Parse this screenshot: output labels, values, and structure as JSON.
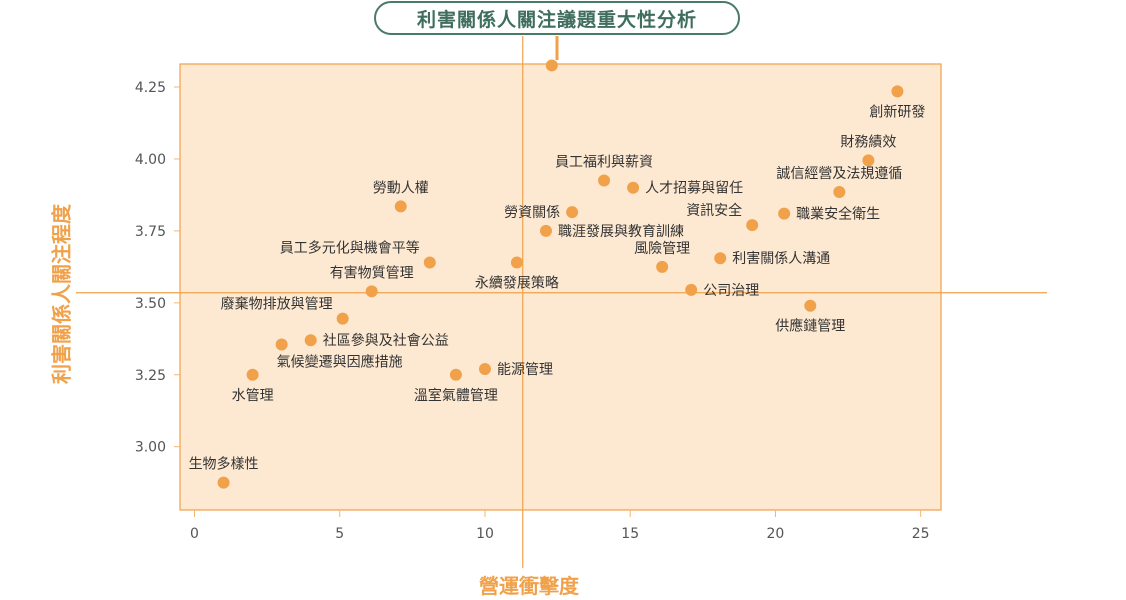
{
  "chart_data": {
    "type": "scatter",
    "title": "利害關係人關注議題重大性分析",
    "xlabel": "營運衝擊度",
    "ylabel": "利害關係人關注程度",
    "xlim": [
      -0.5,
      25.7
    ],
    "ylim": [
      2.78,
      4.33
    ],
    "xticks": [
      0,
      5,
      10,
      15,
      20,
      25
    ],
    "yticks": [
      3.0,
      3.25,
      3.5,
      3.75,
      4.0,
      4.25
    ],
    "ytick_labels": [
      "3.00",
      "3.25",
      "3.50",
      "3.75",
      "4.00",
      "4.25"
    ],
    "divider": {
      "x": 11.3,
      "y": 3.535
    },
    "grid": false,
    "colors": {
      "point": "#f0a14a",
      "plot_bg": "#fde9d2",
      "border": "#f0a14a",
      "title_border": "#4a7a68",
      "title_text": "#3f6e5e",
      "axis_label": "#f0a14a"
    },
    "points": [
      {
        "label": "創新研發",
        "x": 24.2,
        "y": 4.235,
        "label_pos": "below"
      },
      {
        "label": "財務績效",
        "x": 23.2,
        "y": 3.995,
        "label_pos": "above"
      },
      {
        "label": "誠信經營及法規遵循",
        "x": 22.2,
        "y": 3.885,
        "label_pos": "above"
      },
      {
        "label": "職業安全衛生",
        "x": 20.3,
        "y": 3.81,
        "label_pos": "right"
      },
      {
        "label": "資訊安全",
        "x": 19.2,
        "y": 3.77,
        "label_pos": "above-left"
      },
      {
        "label": "利害關係人溝通",
        "x": 18.1,
        "y": 3.655,
        "label_pos": "right"
      },
      {
        "label": "風險管理",
        "x": 16.1,
        "y": 3.625,
        "label_pos": "above"
      },
      {
        "label": "公司治理",
        "x": 17.1,
        "y": 3.545,
        "label_pos": "right"
      },
      {
        "label": "供應鏈管理",
        "x": 21.2,
        "y": 3.49,
        "label_pos": "below"
      },
      {
        "label": "員工福利與薪資",
        "x": 14.1,
        "y": 3.925,
        "label_pos": "above"
      },
      {
        "label": "人才招募與留任",
        "x": 15.1,
        "y": 3.9,
        "label_pos": "right"
      },
      {
        "label": "勞資關係",
        "x": 13.0,
        "y": 3.815,
        "label_pos": "left"
      },
      {
        "label": "職涯發展與教育訓練",
        "x": 12.1,
        "y": 3.75,
        "label_pos": "right"
      },
      {
        "label": "永續發展策略",
        "x": 11.1,
        "y": 3.64,
        "label_pos": "below"
      },
      {
        "label": "勞動人權",
        "x": 7.1,
        "y": 3.835,
        "label_pos": "above"
      },
      {
        "label": "員工多元化與機會平等",
        "x": 8.1,
        "y": 3.64,
        "label_pos": "above-left"
      },
      {
        "label": "有害物質管理",
        "x": 6.1,
        "y": 3.54,
        "label_pos": "above"
      },
      {
        "label": "廢棄物排放與管理",
        "x": 5.1,
        "y": 3.445,
        "label_pos": "above-left"
      },
      {
        "label": "社區參與及社會公益",
        "x": 4.0,
        "y": 3.37,
        "label_pos": "right"
      },
      {
        "label": "氣候變遷與因應措施",
        "x": 3.0,
        "y": 3.355,
        "label_pos": "below-right"
      },
      {
        "label": "水管理",
        "x": 2.0,
        "y": 3.25,
        "label_pos": "below"
      },
      {
        "label": "溫室氣體管理",
        "x": 9.0,
        "y": 3.25,
        "label_pos": "below"
      },
      {
        "label": "能源管理",
        "x": 10.0,
        "y": 3.27,
        "label_pos": "right"
      },
      {
        "label": "生物多樣性",
        "x": 1.0,
        "y": 2.875,
        "label_pos": "above"
      },
      {
        "label": "",
        "x": 12.3,
        "y": 4.325,
        "label_pos": "none"
      }
    ]
  }
}
